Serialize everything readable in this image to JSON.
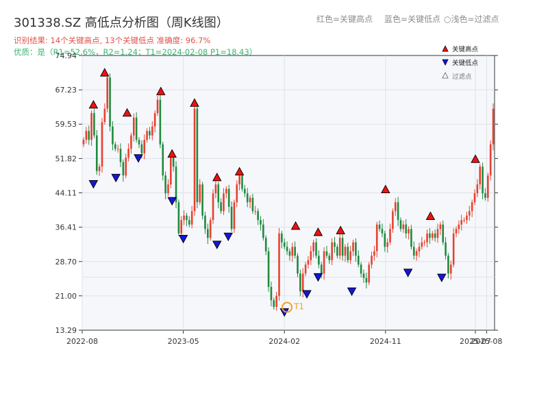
{
  "header": {
    "title": "301338.SZ 高低点分析图（周K线图）",
    "legend_red": "红色=关键高点",
    "legend_blue": "蓝色=关键低点",
    "legend_light": "○浅色=过滤点",
    "result_line": "识别结果: 14个关键高点, 13个关键低点   准确度: 96.7%",
    "quality_line": "优质：是（R1=52.6%，R2=1.24；T1=2024-02-08 P1=18.43）"
  },
  "legend": {
    "high": "关键高点",
    "low": "关键低点",
    "filtered": "过滤点"
  },
  "annotation": {
    "t1_label": "T1"
  },
  "colors": {
    "up": "#e8402f",
    "down": "#1f8a3e",
    "high_marker": "#ee1111",
    "low_marker": "#1515dd",
    "t1_ring": "#f0a030",
    "plot_bg": "#f5f7fa",
    "grid": "#dde2e8"
  },
  "chart_data": {
    "type": "candlestick",
    "title": "301338.SZ 高低点分析图（周K线图）",
    "ylim": [
      13.29,
      74.94
    ],
    "y_ticks": [
      "13.29",
      "21.00",
      "28.70",
      "36.41",
      "44.11",
      "51.82",
      "59.53",
      "67.23",
      "74.94"
    ],
    "x_ticks": [
      "2022-08",
      "2023-05",
      "2024-02",
      "2024-11",
      "2025-07",
      "2025-08"
    ],
    "grid": true,
    "legend_position": "top-right",
    "key_highs": [
      {
        "date": "2022-09",
        "price": 62.8
      },
      {
        "date": "2022-10",
        "price": 70.0
      },
      {
        "date": "2022-12",
        "price": 61.0
      },
      {
        "date": "2023-03",
        "price": 65.8
      },
      {
        "date": "2023-04",
        "price": 51.8
      },
      {
        "date": "2023-06",
        "price": 63.2
      },
      {
        "date": "2023-08",
        "price": 46.5
      },
      {
        "date": "2023-10",
        "price": 47.8
      },
      {
        "date": "2024-03",
        "price": 35.6
      },
      {
        "date": "2024-05",
        "price": 34.2
      },
      {
        "date": "2024-07",
        "price": 34.6
      },
      {
        "date": "2024-11",
        "price": 43.8
      },
      {
        "date": "2025-03",
        "price": 37.8
      },
      {
        "date": "2025-07",
        "price": 50.6
      }
    ],
    "key_lows": [
      {
        "date": "2022-09",
        "price": 47.2
      },
      {
        "date": "2022-11",
        "price": 48.6
      },
      {
        "date": "2023-01",
        "price": 53.0
      },
      {
        "date": "2023-04",
        "price": 43.4
      },
      {
        "date": "2023-05",
        "price": 34.9
      },
      {
        "date": "2023-08",
        "price": 33.6
      },
      {
        "date": "2023-09",
        "price": 35.4
      },
      {
        "date": "2024-02",
        "price": 18.43
      },
      {
        "date": "2024-04",
        "price": 22.5
      },
      {
        "date": "2024-05",
        "price": 26.3
      },
      {
        "date": "2024-08",
        "price": 23.1
      },
      {
        "date": "2025-01",
        "price": 27.3
      },
      {
        "date": "2025-04",
        "price": 26.2
      }
    ],
    "t1": {
      "date": "2024-02-08",
      "price": 18.43
    },
    "weekly_closes": [
      56,
      58,
      56,
      62,
      57,
      49,
      50,
      60,
      63,
      70,
      59,
      55,
      54,
      54,
      51,
      48,
      52,
      54,
      57,
      61,
      56,
      55,
      53,
      56,
      58,
      57,
      59,
      62,
      65,
      55,
      48,
      44,
      46,
      52,
      50,
      42,
      35,
      38,
      39,
      38,
      37,
      40,
      63,
      42,
      46,
      39,
      36,
      34,
      38,
      44,
      46,
      42,
      40,
      44,
      45,
      41,
      36,
      42,
      46,
      48,
      45,
      44,
      42,
      43,
      40,
      40,
      38,
      37,
      34,
      31,
      23,
      20,
      18.5,
      21,
      35,
      33,
      32,
      31,
      30,
      32,
      30,
      26,
      22,
      26,
      28,
      29,
      31,
      33,
      30,
      28,
      26,
      31,
      30,
      29,
      33,
      32,
      30,
      34,
      30,
      32,
      29,
      31,
      33,
      30,
      28,
      26,
      25,
      24,
      28,
      30,
      31,
      37,
      36,
      35,
      32,
      33,
      36,
      40,
      42,
      38,
      36,
      37,
      35,
      36,
      32,
      30,
      31,
      32,
      33,
      33,
      35,
      34,
      35,
      34,
      36,
      37,
      33,
      30,
      26,
      28,
      35,
      36,
      37,
      38,
      38,
      39,
      40,
      42,
      44,
      46,
      50,
      44,
      43,
      48,
      55,
      63
    ]
  }
}
